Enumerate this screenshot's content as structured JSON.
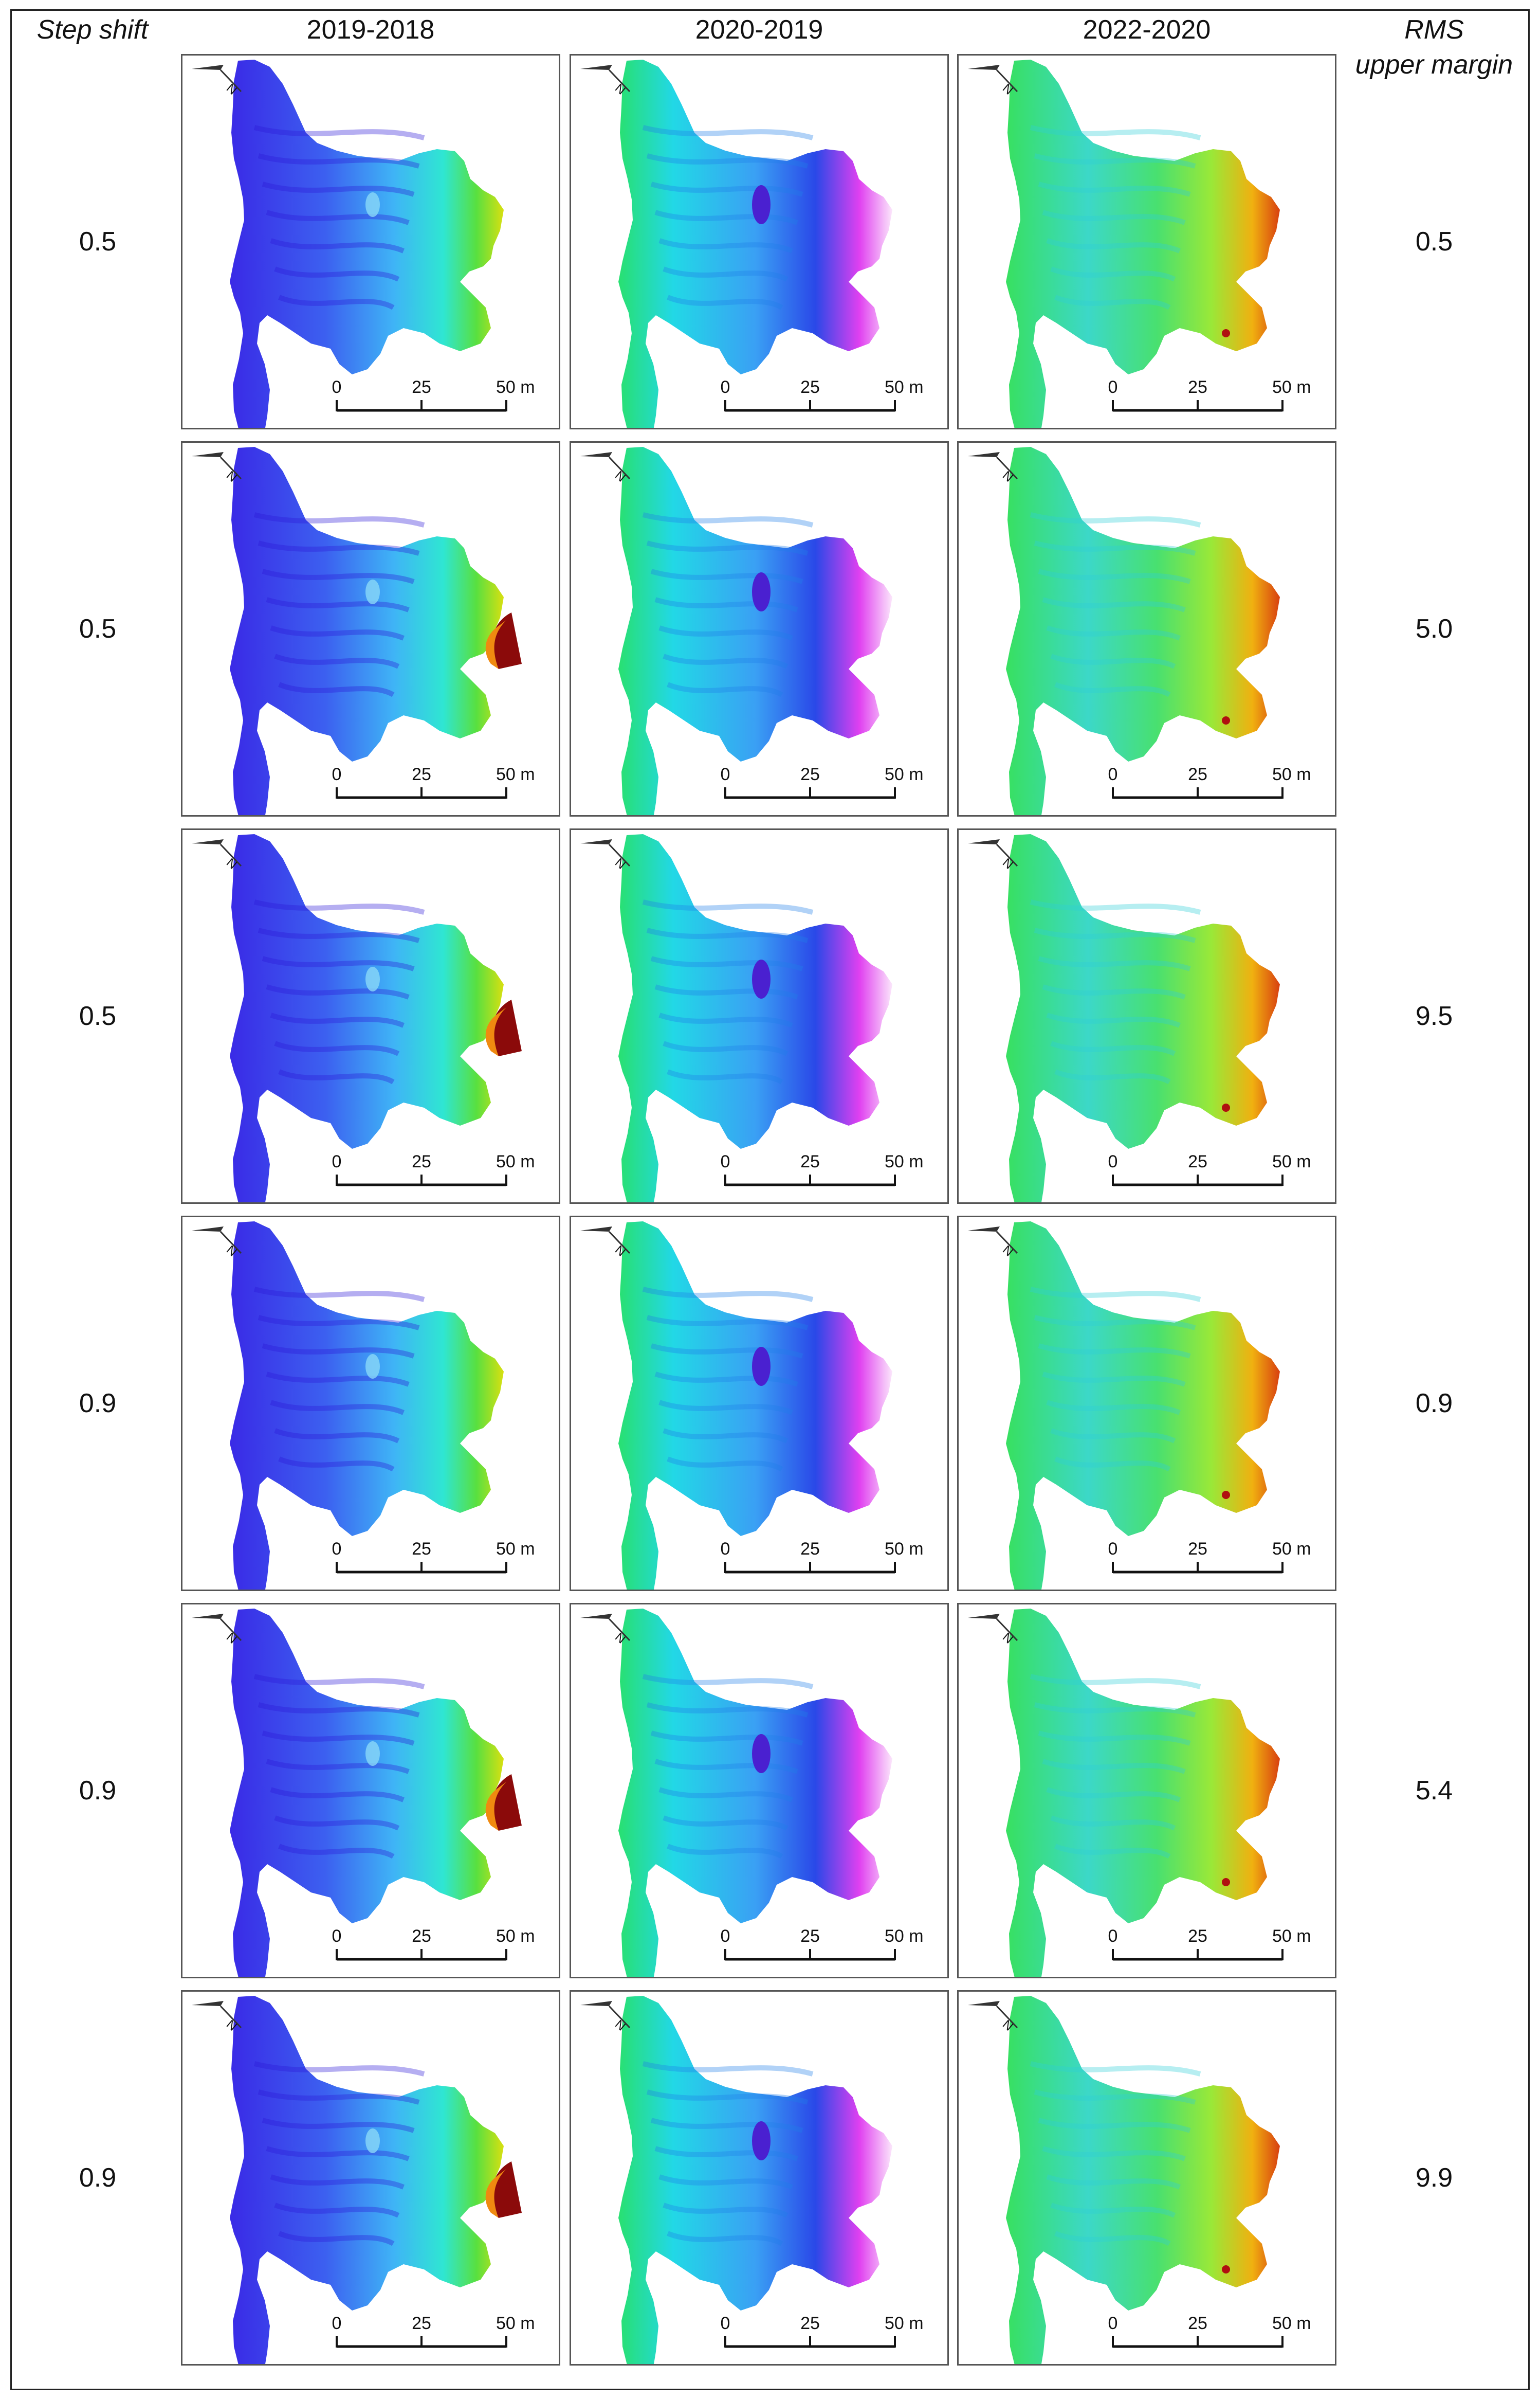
{
  "headers": {
    "left": "Step shift",
    "columns": [
      "2019-2018",
      "2020-2019",
      "2022-2020"
    ],
    "right_line1": "RMS",
    "right_line2": "upper margin"
  },
  "rows": [
    {
      "step_shift": "0.5",
      "rms_upper_margin": "0.5"
    },
    {
      "step_shift": "0.5",
      "rms_upper_margin": "5.0"
    },
    {
      "step_shift": "0.5",
      "rms_upper_margin": "9.5"
    },
    {
      "step_shift": "0.9",
      "rms_upper_margin": "0.9"
    },
    {
      "step_shift": "0.9",
      "rms_upper_margin": "5.4"
    },
    {
      "step_shift": "0.9",
      "rms_upper_margin": "9.9"
    }
  ],
  "scalebar": {
    "ticks": [
      "0",
      "25",
      "50 m"
    ]
  },
  "north_arrow": {
    "label": "N",
    "icon": "north-arrow-icon"
  },
  "colors": {
    "frame": "#222222",
    "palette_2019_2018": [
      "#2a1ce0",
      "#3a55f0",
      "#38b8f5",
      "#22e8e8",
      "#30e05a",
      "#d8e010",
      "#f08a10",
      "#8b0a0a"
    ],
    "palette_2020_2019": [
      "#20d8f0",
      "#3ca0f4",
      "#2040e8",
      "#ff30ff",
      "#ffffff"
    ],
    "palette_2022_2020": [
      "#38e060",
      "#30d8d0",
      "#b8e820",
      "#f0b010",
      "#d84010",
      "#8b0a0a",
      "#ff30ff"
    ]
  }
}
